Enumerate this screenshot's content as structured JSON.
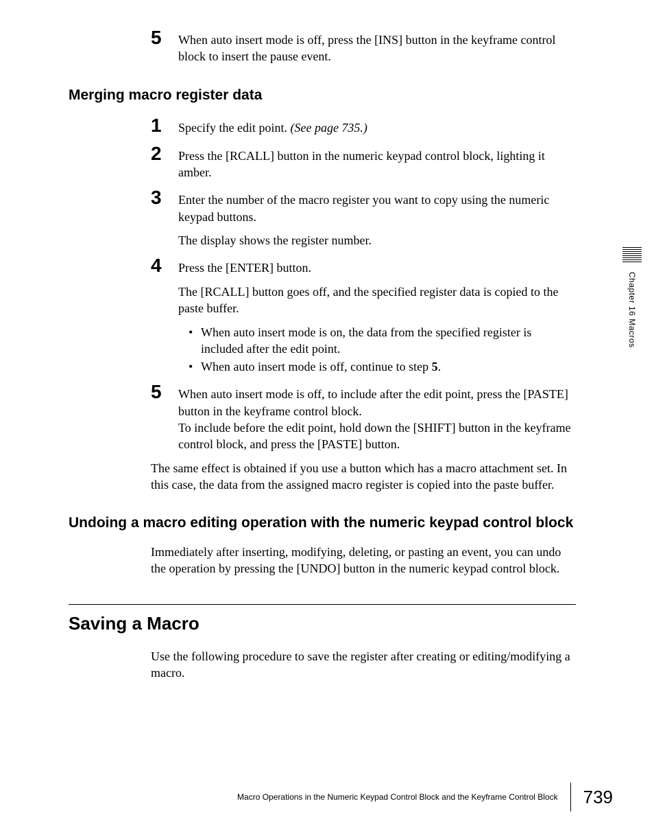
{
  "intro_step": {
    "num": "5",
    "text": "When auto insert mode is off, press the [INS] button in the keyframe control block to insert the pause event."
  },
  "section_merge": {
    "heading": "Merging macro register data",
    "steps": {
      "s1": {
        "num": "1",
        "text_a": "Specify the edit point. ",
        "text_b": "(See page 735.)"
      },
      "s2": {
        "num": "2",
        "text": "Press the [RCALL] button in the numeric keypad control block, lighting it amber."
      },
      "s3": {
        "num": "3",
        "text": "Enter the number of the macro register you want to copy using the numeric keypad buttons.",
        "sub": "The display shows the register number."
      },
      "s4": {
        "num": "4",
        "text": "Press the [ENTER] button.",
        "sub": "The [RCALL] button goes off, and the specified register data is copied to the paste buffer.",
        "bullets": {
          "b1": "When auto insert mode is on, the data from the specified register is included after the edit point.",
          "b2_a": "When auto insert mode is off, continue to step ",
          "b2_b": "5",
          "b2_c": "."
        }
      },
      "s5": {
        "num": "5",
        "text": "When auto insert mode is off, to include after the edit point, press the [PASTE] button in the keyframe control block.\nTo include before the edit point, hold down the [SHIFT] button in the keyframe control block, and press the [PASTE] button."
      }
    },
    "tail": "The same effect is obtained if you use a button which has a macro attachment set. In this case, the data from the assigned macro register is copied into the paste buffer."
  },
  "section_undo": {
    "heading": "Undoing a macro editing operation with the numeric keypad control block",
    "body": "Immediately after inserting, modifying, deleting, or pasting an event, you can undo the operation by pressing the [UNDO] button in the numeric keypad control block."
  },
  "section_save": {
    "heading": "Saving a Macro",
    "body": "Use the following procedure to save the register after creating or editing/modifying a macro."
  },
  "side": {
    "label": "Chapter 16  Macros"
  },
  "footer": {
    "text": "Macro Operations in the Numeric Keypad Control Block and the Keyframe Control Block",
    "page": "739"
  }
}
